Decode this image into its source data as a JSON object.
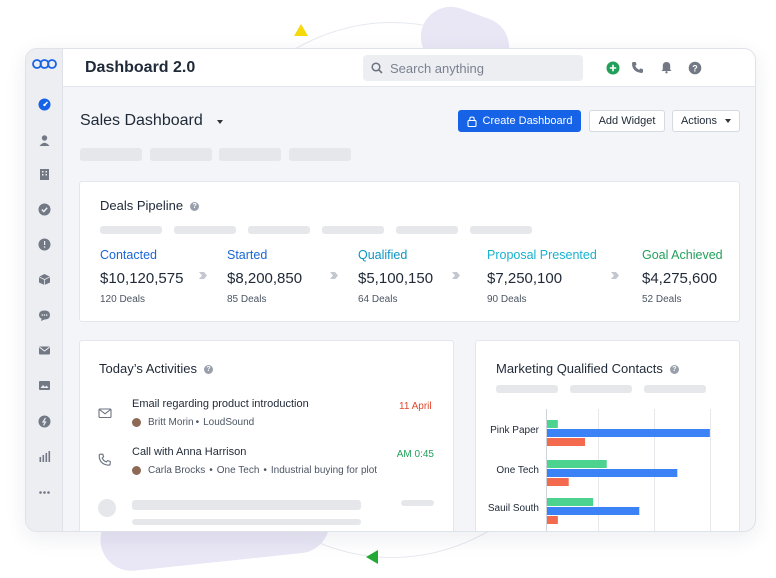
{
  "app": {
    "title": "Dashboard 2.0"
  },
  "search": {
    "placeholder": "Search anything"
  },
  "topbar_icons": [
    "plus-circle-icon",
    "phone-icon",
    "bell-icon",
    "help-icon"
  ],
  "sidebar": {
    "items": [
      "dashboard-icon",
      "contacts-icon",
      "companies-icon",
      "deals-icon",
      "reports-icon",
      "products-icon",
      "chat-icon",
      "mail-icon",
      "inbox-icon",
      "billing-icon",
      "analytics-icon",
      "more-icon"
    ]
  },
  "page": {
    "title": "Sales Dashboard",
    "create_button": "Create Dashboard",
    "add_widget_button": "Add Widget",
    "actions_button": "Actions"
  },
  "pipeline": {
    "title": "Deals Pipeline",
    "stages": [
      {
        "label": "Contacted",
        "value": "$10,120,575",
        "deals": "120 Deals",
        "color": "#1a66d6"
      },
      {
        "label": "Started",
        "value": "$8,200,850",
        "deals": "85 Deals",
        "color": "#1a66d6"
      },
      {
        "label": "Qualified",
        "value": "$5,100,150",
        "deals": "64 Deals",
        "color": "#0c96c3"
      },
      {
        "label": "Proposal Presented",
        "value": "$7,250,100",
        "deals": "90 Deals",
        "color": "#17b3cf"
      },
      {
        "label": "Goal Achieved",
        "value": "$4,275,600",
        "deals": "52 Deals",
        "color": "#22a05a"
      }
    ]
  },
  "activities": {
    "title": "Today’s Activities",
    "items": [
      {
        "icon": "mail-icon",
        "title": "Email regarding product introduction",
        "person": "Britt Morin",
        "company": "LoudSound",
        "date": "11 April",
        "date_color": "#e0472b"
      },
      {
        "icon": "phone-icon",
        "title": "Call with Anna Harrison",
        "person": "Carla Brocks",
        "company": "One Tech",
        "note": "Industrial buying for plot",
        "date": "0:45 AM",
        "date_color": "#22a05a"
      }
    ]
  },
  "chart_data": {
    "type": "bar",
    "title": "Marketing Qualified Contacts",
    "orientation": "horizontal",
    "categories": [
      "Pink Paper",
      "One Tech",
      "Sauil South"
    ],
    "series": [
      {
        "values": [
          2,
          11,
          8.5
        ],
        "color": "#4cd390"
      },
      {
        "values": [
          30,
          24,
          17
        ],
        "color": "#3b82f6"
      },
      {
        "values": [
          7,
          4,
          2
        ],
        "color": "#f46a4f"
      }
    ],
    "grid": true,
    "legend": "none"
  }
}
